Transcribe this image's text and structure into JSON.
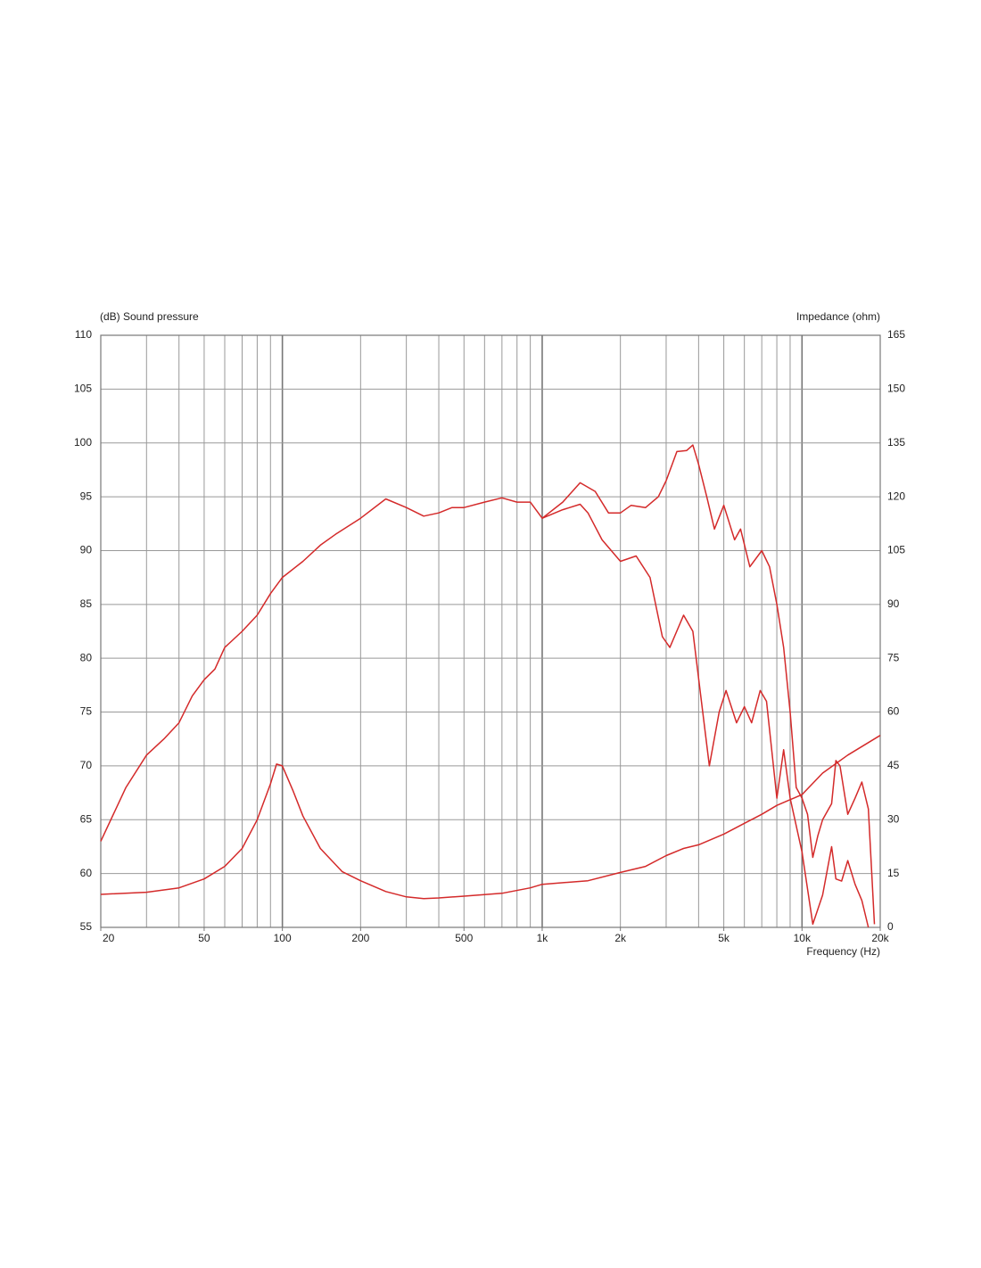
{
  "chart_data": {
    "type": "line",
    "y_label": "(dB)  Sound pressure",
    "y2_label": "Impedance  (ohm)",
    "x_label": "Frequency  (Hz)",
    "xscale": "log",
    "grid": true,
    "xlim": [
      20,
      20000
    ],
    "xticks": [
      20,
      50,
      100,
      200,
      500,
      {
        "value": 1000,
        "label": "1k"
      },
      {
        "value": 2000,
        "label": "2k"
      },
      {
        "value": 5000,
        "label": "5k"
      },
      {
        "value": 10000,
        "label": "10k"
      },
      {
        "value": 20000,
        "label": "20k"
      }
    ],
    "ylim": [
      55,
      110
    ],
    "yticks": [
      55,
      60,
      65,
      70,
      75,
      80,
      85,
      90,
      95,
      100,
      105,
      110
    ],
    "y2lim": [
      0,
      165
    ],
    "y2ticks": [
      0,
      15,
      30,
      45,
      60,
      75,
      90,
      105,
      120,
      135,
      150,
      165
    ],
    "series": [
      {
        "color": "#d42a2a",
        "x": [
          20,
          25,
          30,
          35,
          40,
          45,
          50,
          55,
          60,
          70,
          80,
          90,
          100,
          120,
          140,
          160,
          200,
          250,
          300,
          350,
          400,
          450,
          500,
          600,
          700,
          800,
          900,
          1000,
          1200,
          1400,
          1600,
          1800,
          2000,
          2200,
          2500,
          2800,
          3000,
          3300,
          3600,
          3800,
          4000,
          4300,
          4600,
          5000,
          5500,
          5800,
          6300,
          7000,
          7500,
          8000,
          8500,
          9000,
          9500,
          10000,
          10500,
          11000,
          11500,
          12000,
          13000,
          13500,
          14000,
          15000,
          16000,
          17000,
          18000,
          19000
        ],
        "values": [
          63,
          68,
          71,
          72.5,
          74,
          76.5,
          78,
          79,
          81,
          82.5,
          84,
          86,
          87.5,
          89,
          90.5,
          91.5,
          93,
          94.8,
          94,
          93.2,
          93.5,
          94,
          94,
          94.5,
          94.9,
          94.5,
          94.5,
          93,
          94.5,
          96.3,
          95.5,
          93.5,
          93.5,
          94.2,
          94,
          95,
          96.5,
          99.2,
          99.3,
          99.8,
          98,
          95,
          92,
          94.2,
          91,
          92,
          88.5,
          90,
          88.5,
          85,
          81,
          75,
          68,
          67,
          65.5,
          61.5,
          63.5,
          65,
          66.5,
          70.5,
          70,
          65.5,
          67,
          68.5,
          66,
          55.3
        ]
      },
      {
        "color": "#d42a2a",
        "x": [
          1000,
          1200,
          1400,
          1500,
          1700,
          2000,
          2300,
          2600,
          2900,
          3100,
          3500,
          3800,
          4100,
          4400,
          4800,
          5100,
          5600,
          6000,
          6400,
          6900,
          7300,
          8000,
          8500,
          9000,
          10000,
          11000,
          12000,
          13000,
          13500,
          14200,
          15000,
          16000,
          17000,
          18000
        ],
        "values": [
          93,
          93.8,
          94.3,
          93.5,
          91,
          89,
          89.5,
          87.5,
          82,
          81,
          84,
          82.5,
          76,
          70,
          75,
          77,
          74,
          75.5,
          74,
          77,
          76,
          67,
          71.5,
          67,
          62,
          55.3,
          58,
          62.5,
          59.5,
          59.3,
          61.2,
          59,
          57.5,
          55
        ]
      },
      {
        "color": "#d42a2a",
        "axis": "y2",
        "x": [
          20,
          30,
          40,
          50,
          60,
          70,
          80,
          90,
          95,
          100,
          110,
          120,
          140,
          170,
          200,
          250,
          300,
          350,
          400,
          500,
          700,
          900,
          1000,
          1500,
          2000,
          2500,
          3000,
          3500,
          4000,
          5000,
          6000,
          7000,
          8000,
          10000,
          12000,
          15000,
          20000
        ],
        "values": [
          9.2,
          9.8,
          11,
          13.5,
          17,
          22,
          30,
          40,
          45.5,
          45,
          38,
          31,
          22,
          15.5,
          13,
          10,
          8.5,
          8,
          8.2,
          8.7,
          9.5,
          11,
          12,
          13,
          15.3,
          17,
          20,
          22,
          23,
          26,
          29,
          31.5,
          34,
          37,
          43,
          48,
          53.5
        ]
      }
    ]
  }
}
